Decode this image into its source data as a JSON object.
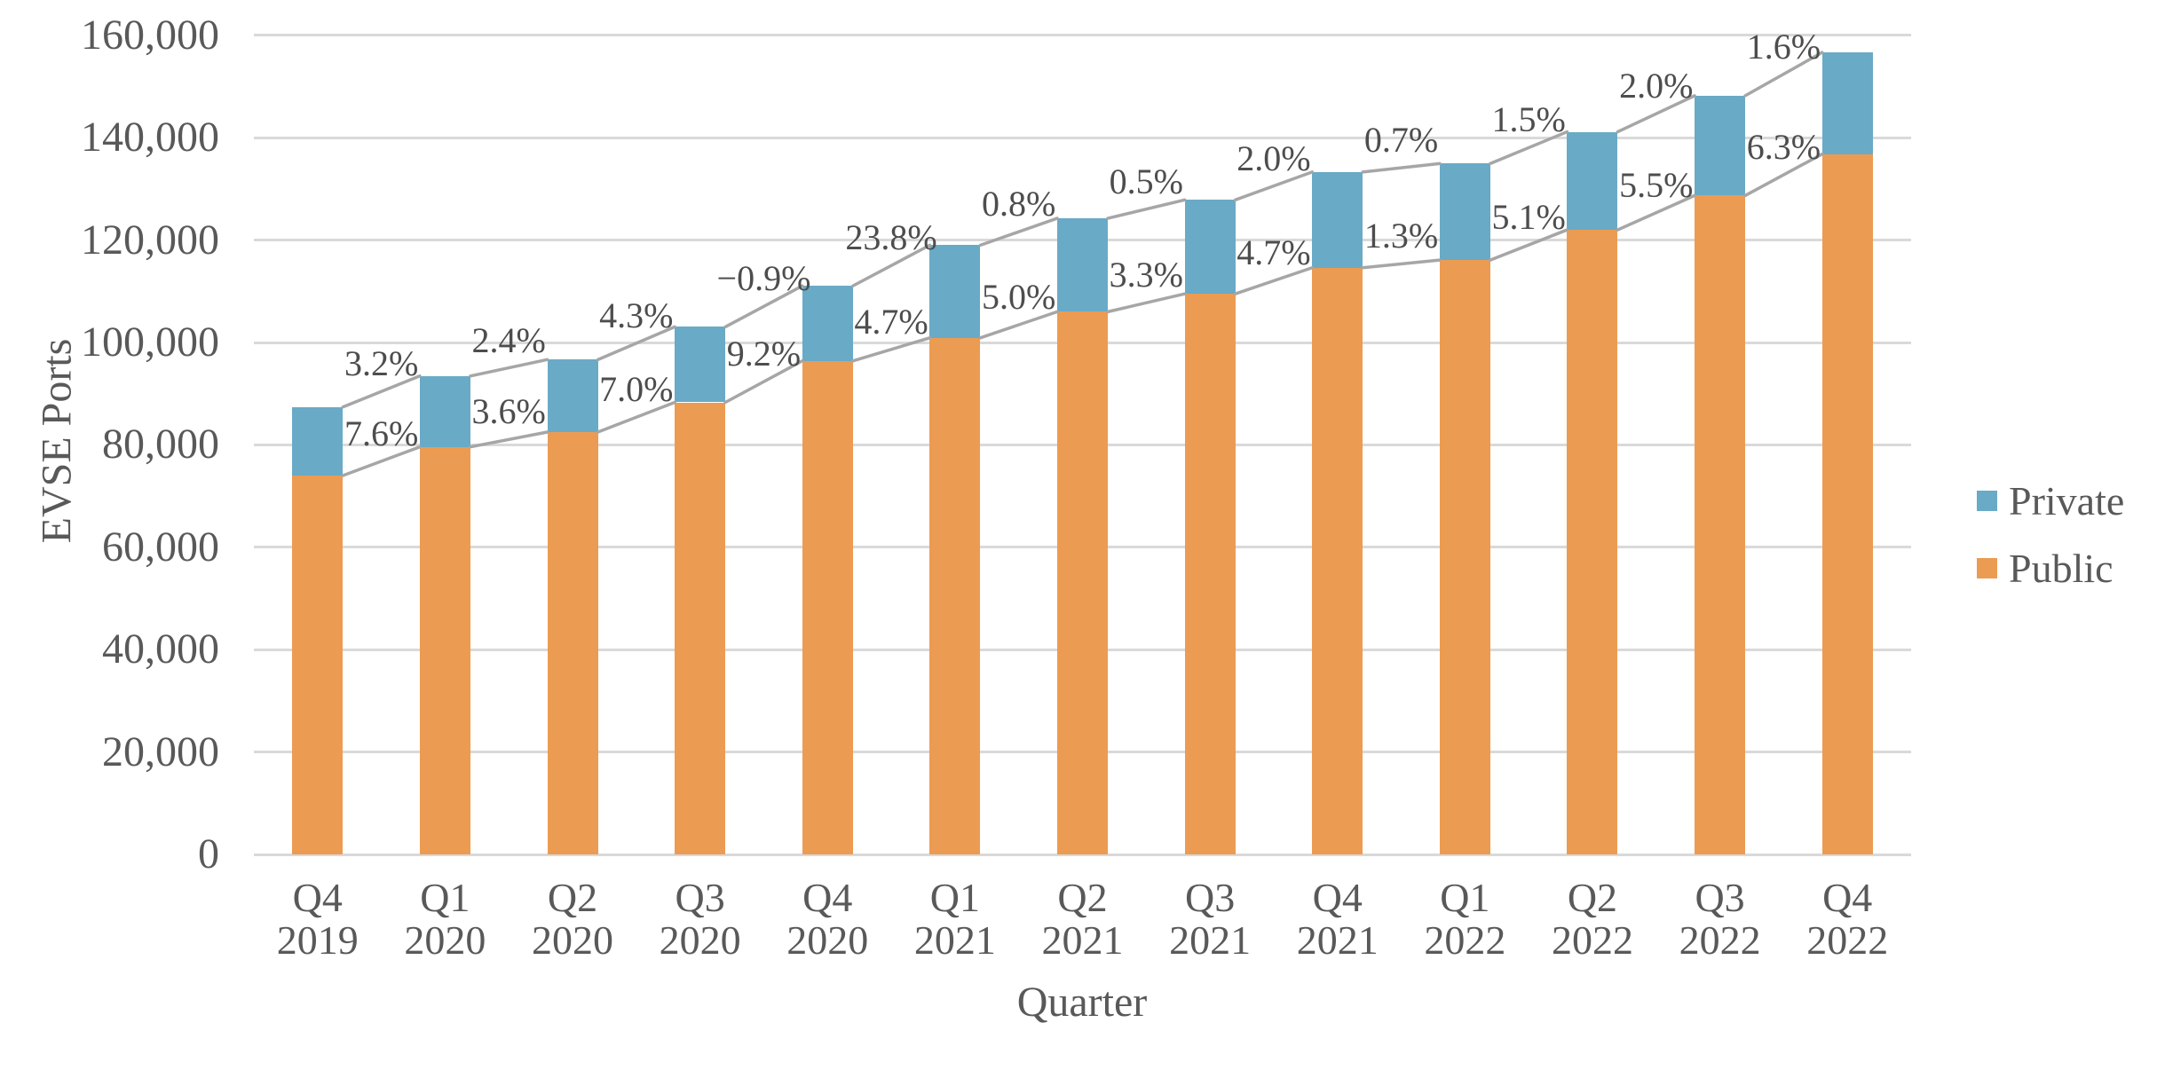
{
  "chart_data": {
    "type": "bar",
    "stacked": true,
    "title": "",
    "xlabel": "Quarter",
    "ylabel": "EVSE Ports",
    "ylim": [
      0,
      160000
    ],
    "ytick_step": 20000,
    "ytick_labels": [
      "0",
      "20,000",
      "40,000",
      "60,000",
      "80,000",
      "100,000",
      "120,000",
      "140,000",
      "160,000"
    ],
    "grid": "horizontal",
    "legend_position": "right",
    "categories": [
      [
        "Q4",
        "2019"
      ],
      [
        "Q1",
        "2020"
      ],
      [
        "Q2",
        "2020"
      ],
      [
        "Q3",
        "2020"
      ],
      [
        "Q4",
        "2020"
      ],
      [
        "Q1",
        "2021"
      ],
      [
        "Q2",
        "2021"
      ],
      [
        "Q3",
        "2021"
      ],
      [
        "Q4",
        "2021"
      ],
      [
        "Q1",
        "2022"
      ],
      [
        "Q2",
        "2022"
      ],
      [
        "Q3",
        "2022"
      ],
      [
        "Q4",
        "2022"
      ]
    ],
    "series": [
      {
        "name": "Public",
        "color": "#EC9B52",
        "values": [
          74000,
          79600,
          82500,
          88300,
          96400,
          100900,
          106000,
          109500,
          114600,
          116100,
          122000,
          128700,
          136800
        ]
      },
      {
        "name": "Private",
        "color": "#69AAC6",
        "values": [
          13400,
          13850,
          14150,
          14750,
          14650,
          18100,
          18250,
          18350,
          18700,
          18850,
          19150,
          19500,
          19850
        ]
      }
    ],
    "growth_labels": {
      "private": [
        "3.2%",
        "2.4%",
        "4.3%",
        "−0.9%",
        "23.8%",
        "0.8%",
        "0.5%",
        "2.0%",
        "0.7%",
        "1.5%",
        "2.0%",
        "1.6%"
      ],
      "public": [
        "7.6%",
        "3.6%",
        "7.0%",
        "9.2%",
        "4.7%",
        "5.0%",
        "3.3%",
        "4.7%",
        "1.3%",
        "5.1%",
        "5.5%",
        "6.3%"
      ]
    },
    "legend": [
      {
        "label": "Private",
        "color": "#69AAC6"
      },
      {
        "label": "Public",
        "color": "#EC9B52"
      }
    ],
    "connector_line_color": "#A6A6A6",
    "gridline_color": "#D9D9D9",
    "text_color": "#595959"
  }
}
